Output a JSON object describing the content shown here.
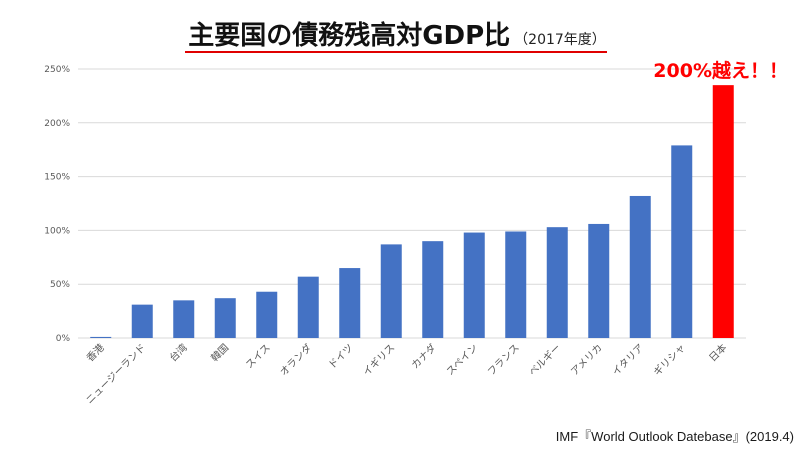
{
  "chart_data": {
    "type": "bar",
    "title": "主要国の債務残高対GDP比",
    "subtitle": "（2017年度）",
    "categories": [
      "香港",
      "ニュージーランド",
      "台湾",
      "韓国",
      "スイス",
      "オランダ",
      "ドイツ",
      "イギリス",
      "カナダ",
      "スペイン",
      "フランス",
      "ベルギー",
      "アメリカ",
      "イタリア",
      "ギリシャ",
      "日本"
    ],
    "values": [
      1,
      31,
      35,
      37,
      43,
      57,
      65,
      87,
      90,
      98,
      99,
      103,
      106,
      132,
      179,
      235
    ],
    "ylim": [
      0,
      250
    ],
    "yticks": [
      0,
      50,
      100,
      150,
      200,
      250
    ],
    "ytick_labels": [
      "0%",
      "50%",
      "100%",
      "150%",
      "200%",
      "250%"
    ],
    "grid": true,
    "legend": false,
    "bar_colors": [
      "#4472C4",
      "#4472C4",
      "#4472C4",
      "#4472C4",
      "#4472C4",
      "#4472C4",
      "#4472C4",
      "#4472C4",
      "#4472C4",
      "#4472C4",
      "#4472C4",
      "#4472C4",
      "#4472C4",
      "#4472C4",
      "#4472C4",
      "#FF0000"
    ],
    "annotation": "200%越え！！"
  },
  "source": "IMF『World Outlook Datebase』(2019.4)"
}
